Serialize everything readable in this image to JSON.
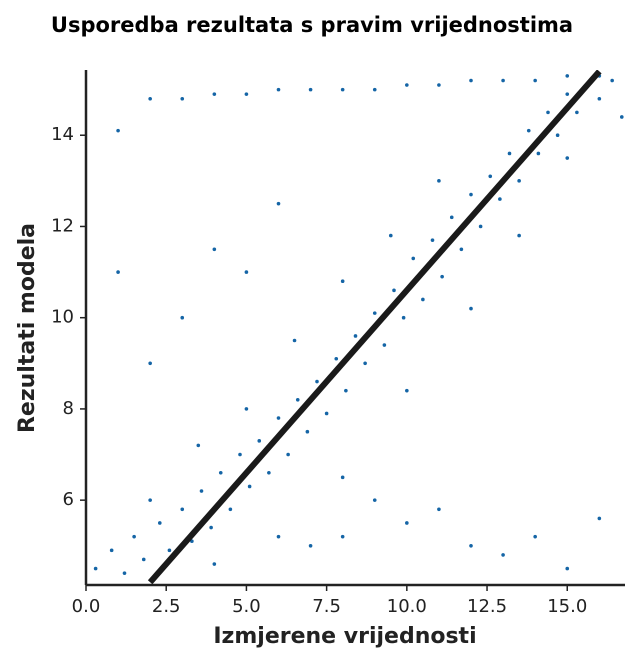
{
  "chart_data": {
    "type": "scatter",
    "title": "Usporedba rezultata s pravim vrijednostima",
    "x_label": "Izmjerene vrijednosti",
    "y_label": "Rezultati modela",
    "xlim": [
      0,
      16.8
    ],
    "ylim": [
      4.14,
      15.43
    ],
    "xticks": [
      {
        "value": 0,
        "label": "0.0"
      },
      {
        "value": 2.5,
        "label": "2.5"
      },
      {
        "value": 5,
        "label": "5.0"
      },
      {
        "value": 7.5,
        "label": "7.5"
      },
      {
        "value": 10,
        "label": "10.0"
      },
      {
        "value": 12.5,
        "label": "12.5"
      },
      {
        "value": 15,
        "label": "15.0"
      }
    ],
    "yticks": [
      6,
      8,
      10,
      12,
      14
    ],
    "points": {
      "color": "#1565a6",
      "x": [
        0.3,
        0.8,
        1.2,
        1.5,
        1.8,
        2.3,
        2.6,
        3.0,
        3.3,
        3.6,
        3.9,
        4.2,
        4.5,
        4.8,
        5.1,
        5.4,
        5.7,
        6.0,
        6.3,
        6.6,
        6.9,
        7.2,
        7.5,
        7.8,
        8.1,
        8.4,
        8.7,
        9.0,
        9.3,
        9.6,
        9.9,
        10.2,
        10.5,
        10.8,
        11.1,
        11.4,
        11.7,
        12.0,
        12.3,
        12.6,
        12.9,
        13.2,
        13.5,
        13.8,
        14.1,
        14.4,
        14.7,
        15.0,
        15.3,
        15.6,
        16.0,
        16.4,
        16.7,
        2.0,
        3.5,
        5.0,
        6.5,
        8.0,
        9.5,
        11.0,
        4.0,
        6.0,
        8.0,
        10.0,
        12.0,
        13.5,
        15.0,
        1,
        1,
        2,
        2,
        3,
        3,
        4,
        4,
        5,
        5,
        6,
        6,
        7,
        7,
        8,
        8,
        9,
        9,
        10,
        10,
        11,
        11,
        12,
        12,
        13,
        13,
        14,
        14,
        15,
        15,
        16,
        16
      ],
      "y": [
        4.5,
        4.9,
        4.4,
        5.2,
        4.7,
        5.5,
        4.9,
        5.8,
        5.1,
        6.2,
        5.4,
        6.6,
        5.8,
        7.0,
        6.3,
        7.3,
        6.6,
        7.8,
        7.0,
        8.2,
        7.5,
        8.6,
        7.9,
        9.1,
        8.4,
        9.6,
        9.0,
        10.1,
        9.4,
        10.6,
        10.0,
        11.3,
        10.4,
        11.7,
        10.9,
        12.2,
        11.5,
        12.7,
        12.0,
        13.1,
        12.6,
        13.6,
        13.0,
        14.1,
        13.6,
        14.5,
        14.0,
        14.9,
        14.5,
        15.1,
        14.8,
        15.2,
        14.4,
        6.0,
        7.2,
        8.0,
        9.5,
        10.8,
        11.8,
        13.0,
        4.6,
        5.2,
        6.5,
        8.4,
        10.2,
        11.8,
        13.5,
        14.1,
        11,
        14.8,
        9,
        14.8,
        10,
        14.9,
        11.5,
        14.9,
        11,
        15,
        12.5,
        15,
        5,
        15,
        5.2,
        15,
        6,
        15.1,
        5.5,
        15.1,
        5.8,
        15.2,
        5,
        15.2,
        4.8,
        15.2,
        5.2,
        15.3,
        4.5,
        15.3,
        5.6
      ]
    },
    "fit_line": {
      "color": "#1a1a1a",
      "x": [
        2,
        16
      ],
      "y": [
        4.2,
        15.4
      ]
    }
  }
}
